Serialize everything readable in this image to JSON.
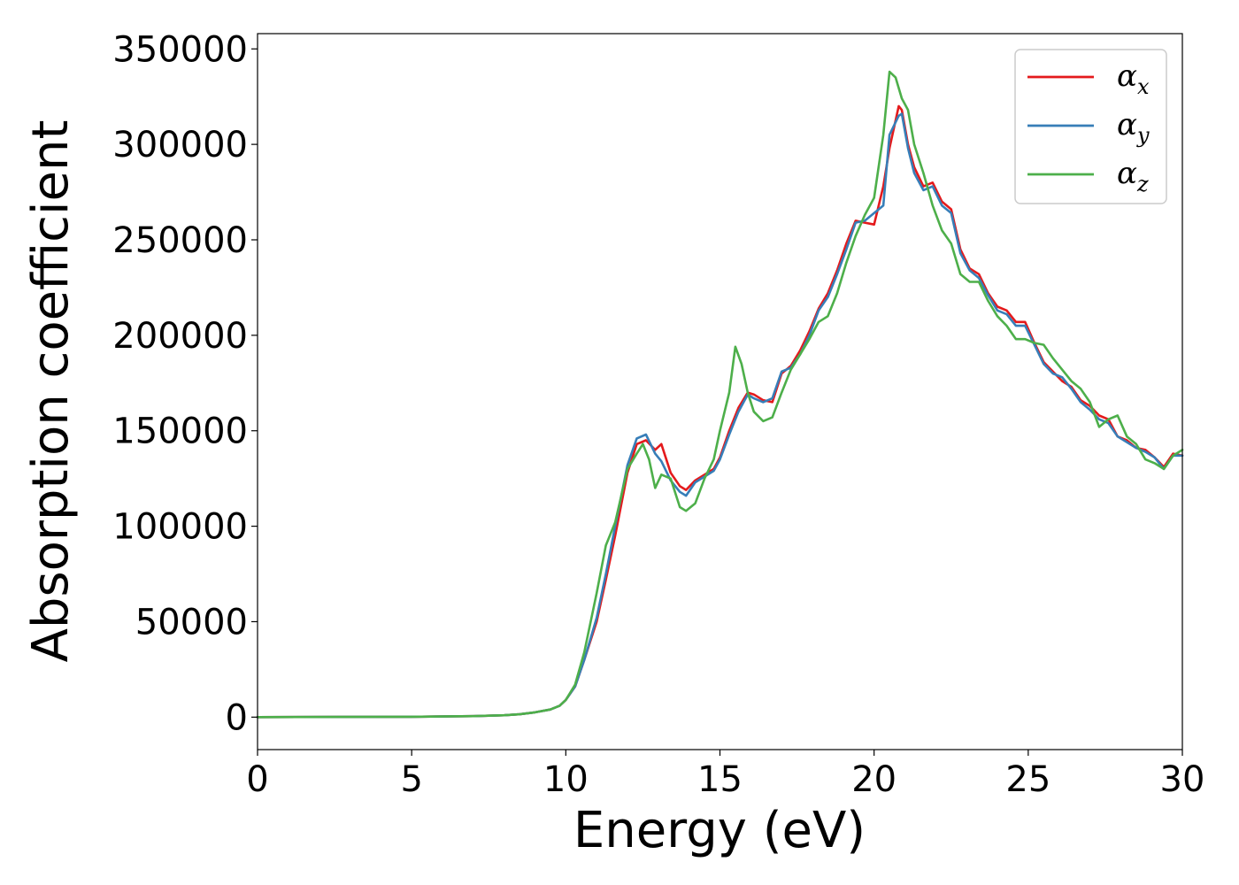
{
  "chart_data": {
    "type": "line",
    "title": "",
    "xlabel": "Energy (eV)",
    "ylabel": "Absorption coefficient",
    "xlim": [
      0,
      30
    ],
    "ylim": [
      -17000,
      358000
    ],
    "xticks": [
      0,
      5,
      10,
      15,
      20,
      25,
      30
    ],
    "yticks": [
      0,
      50000,
      100000,
      150000,
      200000,
      250000,
      300000,
      350000
    ],
    "grid": false,
    "legend_position": "top-right",
    "series": [
      {
        "name": "α",
        "subscript": "x",
        "color": "#e41a1c",
        "x": [
          0,
          5,
          7,
          8,
          8.5,
          9,
          9.5,
          9.8,
          10,
          10.3,
          10.6,
          11,
          11.3,
          11.6,
          12,
          12.3,
          12.6,
          12.9,
          13.1,
          13.4,
          13.7,
          13.9,
          14.2,
          14.5,
          14.8,
          15,
          15.3,
          15.6,
          15.9,
          16.1,
          16.4,
          16.7,
          17,
          17.3,
          17.6,
          17.9,
          18.2,
          18.5,
          18.8,
          19.1,
          19.4,
          19.7,
          20,
          20.3,
          20.5,
          20.8,
          20.9,
          21.1,
          21.3,
          21.6,
          21.9,
          22.2,
          22.5,
          22.8,
          23.1,
          23.4,
          23.7,
          24,
          24.3,
          24.6,
          24.9,
          25.2,
          25.5,
          25.8,
          26.1,
          26.4,
          26.7,
          27,
          27.3,
          27.6,
          27.9,
          28.2,
          28.5,
          28.8,
          29.1,
          29.4,
          29.7,
          30
        ],
        "y": [
          0,
          200,
          500,
          1000,
          1500,
          2500,
          4000,
          6000,
          9000,
          16000,
          30000,
          50000,
          72000,
          95000,
          128000,
          143000,
          145000,
          140000,
          143000,
          128000,
          121000,
          119000,
          124000,
          127000,
          130000,
          136000,
          150000,
          162000,
          170000,
          169000,
          166000,
          165000,
          180000,
          184000,
          192000,
          202000,
          214000,
          222000,
          234000,
          248000,
          260000,
          259000,
          258000,
          278000,
          298000,
          320000,
          318000,
          300000,
          288000,
          278000,
          280000,
          270000,
          266000,
          245000,
          235000,
          232000,
          222000,
          215000,
          213000,
          207000,
          207000,
          196000,
          186000,
          181000,
          176000,
          173000,
          166000,
          163000,
          158000,
          156000,
          147000,
          145000,
          141000,
          140000,
          136000,
          131000,
          138000,
          137000
        ]
      },
      {
        "name": "α",
        "subscript": "y",
        "color": "#377eb8",
        "x": [
          0,
          5,
          7,
          8,
          8.5,
          9,
          9.5,
          9.8,
          10,
          10.3,
          10.6,
          11,
          11.3,
          11.6,
          12,
          12.3,
          12.6,
          12.9,
          13.1,
          13.4,
          13.7,
          13.9,
          14.2,
          14.5,
          14.8,
          15,
          15.3,
          15.6,
          15.9,
          16.1,
          16.4,
          16.7,
          17,
          17.3,
          17.6,
          17.9,
          18.2,
          18.5,
          18.8,
          19.1,
          19.4,
          19.7,
          20,
          20.3,
          20.5,
          20.8,
          20.9,
          21.1,
          21.3,
          21.6,
          21.9,
          22.2,
          22.5,
          22.8,
          23.1,
          23.4,
          23.7,
          24,
          24.3,
          24.6,
          24.9,
          25.2,
          25.5,
          25.8,
          26.1,
          26.4,
          26.7,
          27,
          27.3,
          27.6,
          27.9,
          28.2,
          28.5,
          28.8,
          29.1,
          29.4,
          29.7,
          30
        ],
        "y": [
          0,
          200,
          500,
          1000,
          1500,
          2500,
          4000,
          6000,
          9000,
          16000,
          30000,
          52000,
          75000,
          100000,
          132000,
          146000,
          148000,
          138000,
          134000,
          124000,
          118000,
          116000,
          123000,
          126000,
          129000,
          135000,
          148000,
          160000,
          169000,
          167000,
          165000,
          167000,
          181000,
          183000,
          190000,
          200000,
          213000,
          220000,
          232000,
          245000,
          259000,
          260000,
          264000,
          268000,
          305000,
          315000,
          316000,
          298000,
          285000,
          276000,
          278000,
          268000,
          264000,
          243000,
          234000,
          230000,
          221000,
          213000,
          211000,
          205000,
          205000,
          195000,
          185000,
          180000,
          178000,
          172000,
          165000,
          161000,
          156000,
          154000,
          147000,
          144000,
          141000,
          139000,
          136000,
          130000,
          137000,
          137000
        ]
      },
      {
        "name": "α",
        "subscript": "z",
        "color": "#4daf4a",
        "x": [
          0,
          5,
          7,
          8,
          8.5,
          9,
          9.5,
          9.8,
          10,
          10.3,
          10.6,
          11,
          11.3,
          11.6,
          12,
          12.3,
          12.5,
          12.7,
          12.9,
          13.1,
          13.4,
          13.7,
          13.9,
          14.2,
          14.5,
          14.8,
          15,
          15.3,
          15.5,
          15.7,
          15.9,
          16.1,
          16.4,
          16.7,
          17,
          17.3,
          17.6,
          17.9,
          18.2,
          18.5,
          18.8,
          19.1,
          19.4,
          19.7,
          20,
          20.3,
          20.5,
          20.7,
          20.9,
          21.1,
          21.3,
          21.6,
          21.9,
          22.2,
          22.5,
          22.8,
          23.1,
          23.4,
          23.7,
          24,
          24.3,
          24.6,
          24.9,
          25.2,
          25.5,
          25.8,
          26.1,
          26.4,
          26.7,
          27,
          27.3,
          27.6,
          27.9,
          28.2,
          28.5,
          28.8,
          29.1,
          29.4,
          29.7,
          30
        ],
        "y": [
          0,
          200,
          500,
          1000,
          1500,
          2500,
          4000,
          6000,
          9000,
          17000,
          34000,
          65000,
          90000,
          102000,
          130000,
          138000,
          143000,
          135000,
          120000,
          127000,
          125000,
          110000,
          108000,
          112000,
          125000,
          135000,
          150000,
          170000,
          194000,
          185000,
          170000,
          160000,
          155000,
          157000,
          170000,
          182000,
          190000,
          198000,
          207000,
          210000,
          222000,
          238000,
          252000,
          263000,
          272000,
          305000,
          338000,
          335000,
          324000,
          318000,
          300000,
          285000,
          268000,
          255000,
          248000,
          232000,
          228000,
          228000,
          218000,
          210000,
          205000,
          198000,
          198000,
          196000,
          195000,
          188000,
          182000,
          176000,
          172000,
          165000,
          152000,
          156000,
          158000,
          147000,
          143000,
          135000,
          133000,
          130000,
          137000,
          140000
        ]
      }
    ]
  }
}
